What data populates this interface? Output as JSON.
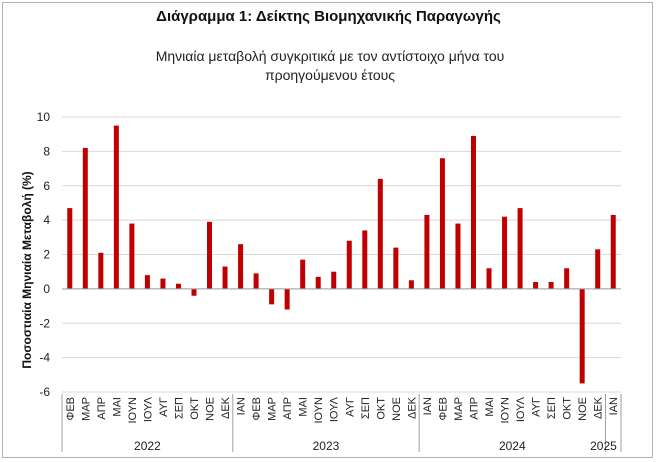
{
  "chart_data": {
    "type": "bar",
    "title": "Διάγραμμα 1: Δείκτης Βιομηχανικής Παραγωγής",
    "subtitle": "Μηνιαία μεταβολή συγκριτικά με τον αντίστοιχο μήνα του προηγούμενου έτους",
    "xlabel": "",
    "ylabel": "Ποσοστιαία Μηνιαία Μεταβολή (%)",
    "ylim": [
      -6,
      10
    ],
    "yticks": [
      -6,
      -4,
      -2,
      0,
      2,
      4,
      6,
      8,
      10
    ],
    "grid": true,
    "legend": "none",
    "bar_color": "#c00000",
    "categories": [
      "ΦΕΒ",
      "ΜΑΡ",
      "ΑΠΡ",
      "ΜΑΙ",
      "ΙΟΥΝ",
      "ΙΟΥΛ",
      "ΑΥΓ",
      "ΣΕΠ",
      "ΟΚΤ",
      "ΝΟΕ",
      "ΔΕΚ",
      "ΙΑΝ",
      "ΦΕΒ",
      "ΜΑΡ",
      "ΑΠΡ",
      "ΜΑΙ",
      "ΙΟΥΝ",
      "ΙΟΥΛ",
      "ΑΥΓ",
      "ΣΕΠ",
      "ΟΚΤ",
      "ΝΟΕ",
      "ΔΕΚ",
      "ΙΑΝ",
      "ΦΕΒ",
      "ΜΑΡ",
      "ΑΠΡ",
      "ΜΑΙ",
      "ΙΟΥΝ",
      "ΙΟΥΛ",
      "ΑΥΓ",
      "ΣΕΠ",
      "ΟΚΤ",
      "ΝΟΕ",
      "ΔΕΚ",
      "ΙΑΝ"
    ],
    "values": [
      4.7,
      8.2,
      2.1,
      9.5,
      3.8,
      0.8,
      0.6,
      0.3,
      -0.4,
      3.9,
      1.3,
      2.6,
      0.9,
      -0.9,
      -1.2,
      1.7,
      0.7,
      1.0,
      2.8,
      3.4,
      6.4,
      2.4,
      0.5,
      4.3,
      7.6,
      3.8,
      8.9,
      1.2,
      4.2,
      4.7,
      0.4,
      0.4,
      1.2,
      -5.5,
      2.3,
      4.3
    ],
    "year_groups": [
      {
        "label": "2022",
        "count": 11
      },
      {
        "label": "2023",
        "count": 12
      },
      {
        "label": "2024",
        "count": 12
      },
      {
        "label": "2025",
        "count": 1
      }
    ]
  }
}
